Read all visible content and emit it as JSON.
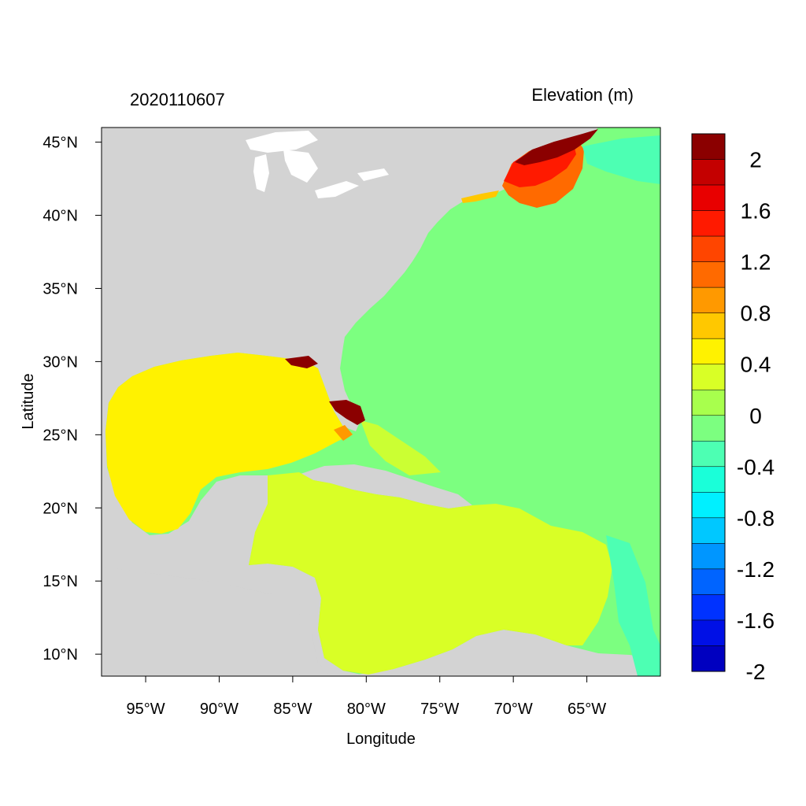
{
  "header": {
    "left_title": "2020110607",
    "right_title": "Elevation (m)"
  },
  "axes": {
    "xlabel": "Longitude",
    "ylabel": "Latitude",
    "lon_range": [
      -98,
      -60
    ],
    "lat_range": [
      8.5,
      46
    ],
    "x_ticks": [
      {
        "value": -95,
        "label": "95°W"
      },
      {
        "value": -90,
        "label": "90°W"
      },
      {
        "value": -85,
        "label": "85°W"
      },
      {
        "value": -80,
        "label": "80°W"
      },
      {
        "value": -75,
        "label": "75°W"
      },
      {
        "value": -70,
        "label": "70°W"
      },
      {
        "value": -65,
        "label": "65°W"
      }
    ],
    "y_ticks": [
      {
        "value": 45,
        "label": "45°N"
      },
      {
        "value": 40,
        "label": "40°N"
      },
      {
        "value": 35,
        "label": "35°N"
      },
      {
        "value": 30,
        "label": "30°N"
      },
      {
        "value": 25,
        "label": "25°N"
      },
      {
        "value": 20,
        "label": "20°N"
      },
      {
        "value": 15,
        "label": "15°N"
      },
      {
        "value": 10,
        "label": "10°N"
      }
    ]
  },
  "colorbar": {
    "colors": [
      "#8b0000",
      "#c40000",
      "#e80000",
      "#ff1a00",
      "#ff4500",
      "#ff6a00",
      "#ff9900",
      "#ffc800",
      "#fff200",
      "#d9ff26",
      "#a8ff4d",
      "#7cff80",
      "#4dffb3",
      "#1affd9",
      "#00f0ff",
      "#00c8ff",
      "#0096ff",
      "#0064ff",
      "#0032ff",
      "#0010e6",
      "#0000c0"
    ],
    "labels": [
      "2",
      "1.6",
      "1.2",
      "0.8",
      "0.4",
      "0",
      "-0.4",
      "-0.8",
      "-1.2",
      "-1.6",
      "-2"
    ]
  },
  "map": {
    "land_color": "#d3d3d3",
    "ocean_color": "#7cff80",
    "gulf_color": "#fff200",
    "caribbean_color": "#d9ff26",
    "surge_color": "#8b0000"
  }
}
